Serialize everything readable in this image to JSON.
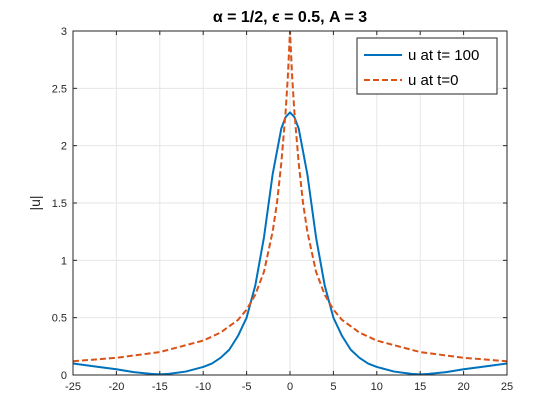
{
  "chart_data": {
    "type": "line",
    "title": "α = 1/2, ϵ = 0.5, A = 3",
    "xlabel": "",
    "ylabel": "|u|",
    "xlim": [
      -25,
      25
    ],
    "ylim": [
      0,
      3
    ],
    "xticks": [
      -25,
      -20,
      -15,
      -10,
      -5,
      0,
      5,
      10,
      15,
      20,
      25
    ],
    "yticks": [
      0,
      0.5,
      1,
      1.5,
      2,
      2.5,
      3
    ],
    "xtick_labels": [
      "-25",
      "-20",
      "-15",
      "-10",
      "-5",
      "0",
      "5",
      "10",
      "15",
      "20",
      "25"
    ],
    "ytick_labels": [
      "0",
      "0.5",
      "1",
      "1.5",
      "2",
      "2.5",
      "3"
    ],
    "grid": true,
    "legend_position": "top-right",
    "series": [
      {
        "name": "u at t= 100",
        "color": "#0072BD",
        "style": "solid",
        "x": [
          -25,
          -22,
          -20,
          -18,
          -16,
          -15,
          -14,
          -12,
          -10,
          -9,
          -8,
          -7,
          -6,
          -5,
          -4,
          -3,
          -2,
          -1,
          -0.5,
          0,
          0.5,
          1,
          2,
          3,
          4,
          5,
          6,
          7,
          8,
          9,
          10,
          12,
          14,
          15,
          16,
          18,
          20,
          22,
          25
        ],
        "y": [
          0.1,
          0.07,
          0.05,
          0.025,
          0.01,
          0.005,
          0.01,
          0.03,
          0.07,
          0.1,
          0.15,
          0.22,
          0.34,
          0.5,
          0.78,
          1.2,
          1.75,
          2.15,
          2.25,
          2.29,
          2.25,
          2.15,
          1.75,
          1.2,
          0.78,
          0.5,
          0.34,
          0.22,
          0.15,
          0.1,
          0.07,
          0.03,
          0.01,
          0.005,
          0.01,
          0.025,
          0.05,
          0.07,
          0.1
        ]
      },
      {
        "name": "u at t=0",
        "color": "#D95319",
        "style": "dashed",
        "x": [
          -25,
          -20,
          -15,
          -10,
          -8,
          -6,
          -5,
          -4,
          -3,
          -2,
          -1.5,
          -1,
          -0.5,
          -0.25,
          0,
          0.25,
          0.5,
          1,
          1.5,
          2,
          3,
          4,
          5,
          6,
          8,
          10,
          15,
          20,
          25
        ],
        "y": [
          0.12,
          0.15,
          0.2,
          0.3,
          0.37,
          0.48,
          0.57,
          0.7,
          0.9,
          1.25,
          1.5,
          1.85,
          2.3,
          2.6,
          3.0,
          2.6,
          2.3,
          1.85,
          1.5,
          1.25,
          0.9,
          0.7,
          0.57,
          0.48,
          0.37,
          0.3,
          0.2,
          0.15,
          0.12
        ]
      }
    ]
  }
}
